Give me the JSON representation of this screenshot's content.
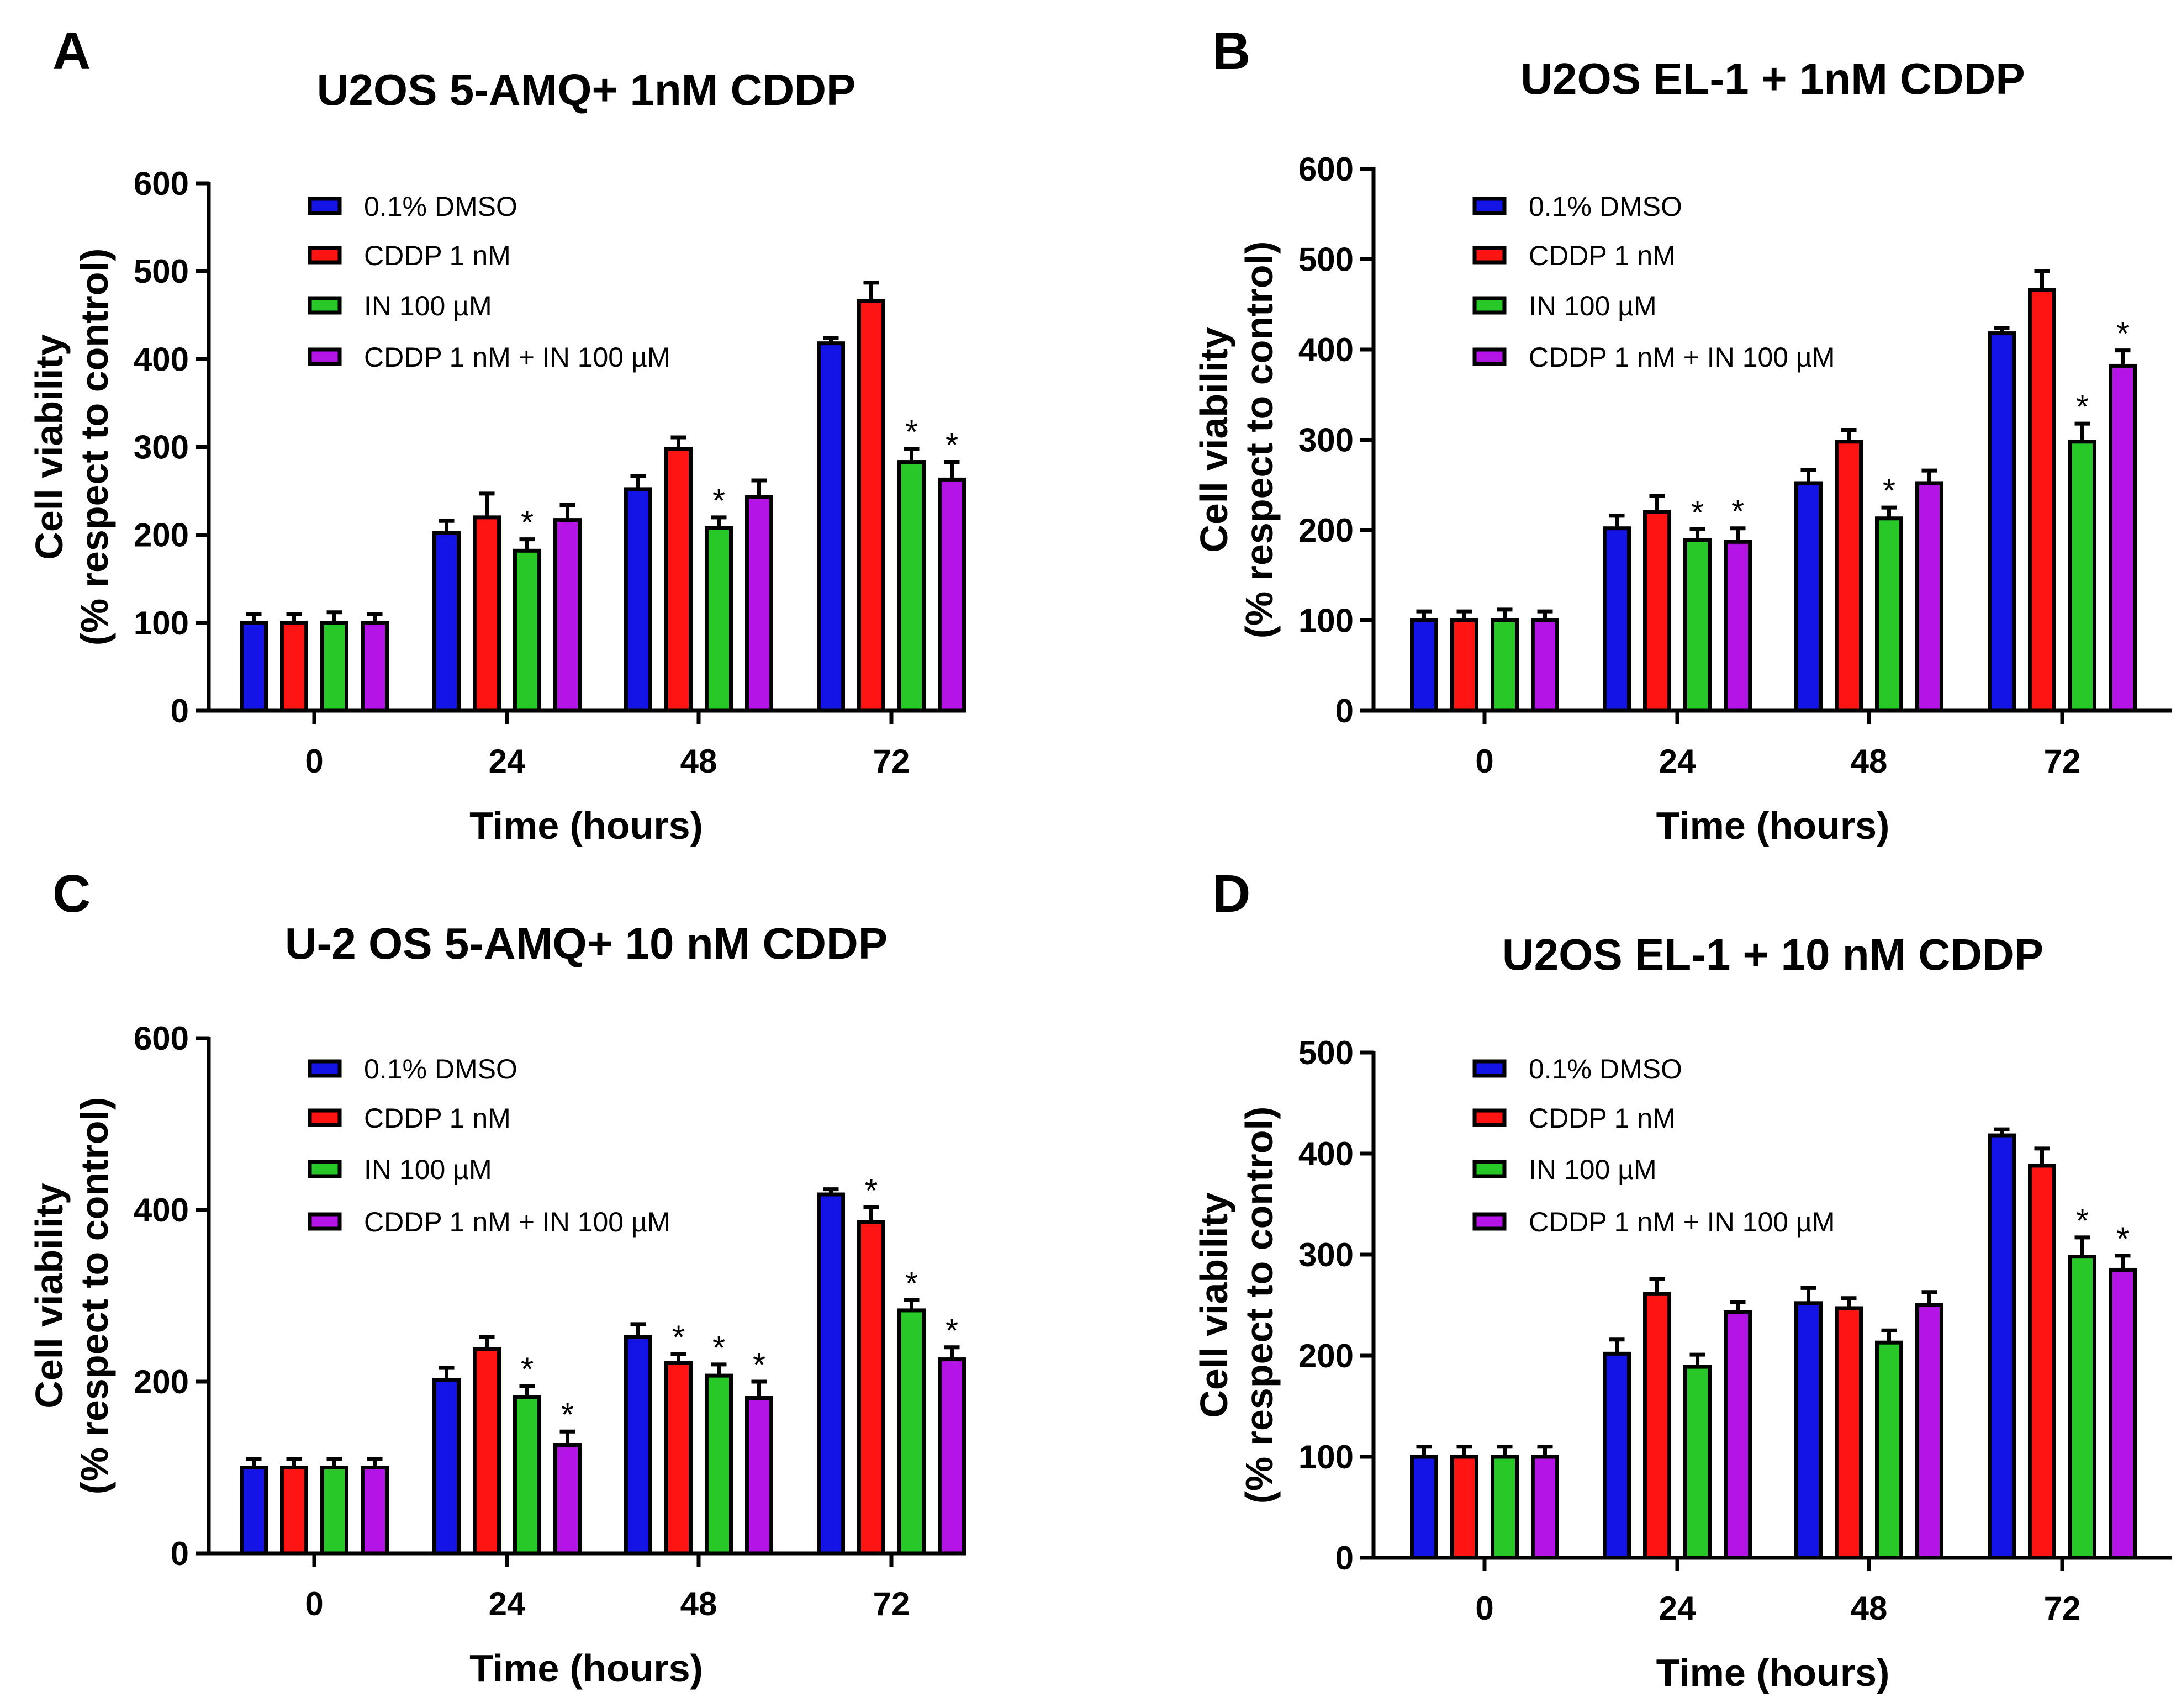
{
  "series_names": [
    "0.1%  DMSO",
    "CDDP 1 nM",
    "IN 100 µM",
    "CDDP 1 nM + IN 100 µM"
  ],
  "series_colors": [
    "#1414e6",
    "#ff1414",
    "#28c828",
    "#b414e6"
  ],
  "chart_data": [
    {
      "type": "bar",
      "panel": "A",
      "title": "U2OS 5-AMQ+ 1nM CDDP",
      "xlabel": "Time (hours)",
      "ylabel_line1": "Cell viability",
      "ylabel_line2": "(% respect to control)",
      "ylim": [
        0,
        600
      ],
      "yticks": [
        0,
        100,
        200,
        300,
        400,
        500,
        600
      ],
      "categories": [
        "0",
        "24",
        "48",
        "72"
      ],
      "series": [
        {
          "name": "0.1%  DMSO",
          "values": [
            100,
            202,
            252,
            418
          ],
          "errors": [
            10,
            14,
            15,
            6
          ]
        },
        {
          "name": "CDDP 1 nM",
          "values": [
            100,
            220,
            298,
            466
          ],
          "errors": [
            10,
            27,
            13,
            21
          ]
        },
        {
          "name": "IN 100 µM",
          "values": [
            100,
            182,
            208,
            283
          ],
          "errors": [
            12,
            13,
            12,
            15
          ]
        },
        {
          "name": "CDDP 1 nM + IN 100 µM",
          "values": [
            100,
            217,
            243,
            263
          ],
          "errors": [
            10,
            17,
            19,
            20
          ]
        }
      ],
      "significance": [
        {
          "series": 2,
          "category": 1,
          "label": "*"
        },
        {
          "series": 2,
          "category": 2,
          "label": "*"
        },
        {
          "series": 2,
          "category": 3,
          "label": "*"
        },
        {
          "series": 3,
          "category": 3,
          "label": "*"
        }
      ]
    },
    {
      "type": "bar",
      "panel": "B",
      "title": "U2OS EL-1 + 1nM CDDP",
      "xlabel": "Time (hours)",
      "ylabel_line1": "Cell viability",
      "ylabel_line2": "(% respect to control)",
      "ylim": [
        0,
        600
      ],
      "yticks": [
        0,
        100,
        200,
        300,
        400,
        500,
        600
      ],
      "categories": [
        "0",
        "24",
        "48",
        "72"
      ],
      "series": [
        {
          "name": "0.1%  DMSO",
          "values": [
            100,
            202,
            252,
            418
          ],
          "errors": [
            10,
            14,
            15,
            6
          ]
        },
        {
          "name": "CDDP 1 nM",
          "values": [
            100,
            220,
            298,
            466
          ],
          "errors": [
            10,
            18,
            13,
            21
          ]
        },
        {
          "name": "IN 100 µM",
          "values": [
            100,
            189,
            213,
            298
          ],
          "errors": [
            12,
            12,
            12,
            20
          ]
        },
        {
          "name": "CDDP 1 nM + IN 100 µM",
          "values": [
            100,
            187,
            252,
            382
          ],
          "errors": [
            10,
            15,
            14,
            17
          ]
        }
      ],
      "significance": [
        {
          "series": 2,
          "category": 1,
          "label": "*"
        },
        {
          "series": 3,
          "category": 1,
          "label": "*"
        },
        {
          "series": 2,
          "category": 2,
          "label": "*"
        },
        {
          "series": 2,
          "category": 3,
          "label": "*"
        },
        {
          "series": 3,
          "category": 3,
          "label": "*"
        }
      ]
    },
    {
      "type": "bar",
      "panel": "C",
      "title": "U-2 OS 5-AMQ+ 10 nM CDDP",
      "xlabel": "Time (hours)",
      "ylabel_line1": "Cell viability",
      "ylabel_line2": "(% respect to control)",
      "ylim": [
        0,
        600
      ],
      "yticks": [
        0,
        200,
        400,
        600
      ],
      "categories": [
        "0",
        "24",
        "48",
        "72"
      ],
      "series": [
        {
          "name": "0.1%  DMSO",
          "values": [
            100,
            202,
            252,
            418
          ],
          "errors": [
            10,
            14,
            15,
            6
          ]
        },
        {
          "name": "CDDP 1 nM",
          "values": [
            100,
            238,
            222,
            386
          ],
          "errors": [
            10,
            14,
            10,
            17
          ]
        },
        {
          "name": "IN 100 µM",
          "values": [
            100,
            182,
            207,
            283
          ],
          "errors": [
            10,
            13,
            13,
            12
          ]
        },
        {
          "name": "CDDP 1 nM + IN 100 µM",
          "values": [
            100,
            126,
            181,
            226
          ],
          "errors": [
            10,
            16,
            19,
            14
          ]
        }
      ],
      "significance": [
        {
          "series": 2,
          "category": 1,
          "label": "*"
        },
        {
          "series": 3,
          "category": 1,
          "label": "*"
        },
        {
          "series": 1,
          "category": 2,
          "label": "*"
        },
        {
          "series": 2,
          "category": 2,
          "label": "*"
        },
        {
          "series": 3,
          "category": 2,
          "label": "*"
        },
        {
          "series": 1,
          "category": 3,
          "label": "*"
        },
        {
          "series": 2,
          "category": 3,
          "label": "*"
        },
        {
          "series": 3,
          "category": 3,
          "label": "*"
        }
      ]
    },
    {
      "type": "bar",
      "panel": "D",
      "title": "U2OS EL-1 + 10 nM CDDP",
      "xlabel": "Time (hours)",
      "ylabel_line1": "Cell viability",
      "ylabel_line2": "(% respect to control)",
      "ylim": [
        0,
        500
      ],
      "yticks": [
        0,
        100,
        200,
        300,
        400,
        500
      ],
      "categories": [
        "0",
        "24",
        "48",
        "72"
      ],
      "series": [
        {
          "name": "0.1%  DMSO",
          "values": [
            100,
            202,
            252,
            418
          ],
          "errors": [
            10,
            14,
            15,
            6
          ]
        },
        {
          "name": "CDDP 1 nM",
          "values": [
            100,
            261,
            247,
            388
          ],
          "errors": [
            10,
            15,
            10,
            17
          ]
        },
        {
          "name": "IN 100 µM",
          "values": [
            100,
            189,
            213,
            298
          ],
          "errors": [
            10,
            12,
            12,
            19
          ]
        },
        {
          "name": "CDDP 1 nM + IN 100 µM",
          "values": [
            100,
            243,
            250,
            285
          ],
          "errors": [
            10,
            10,
            13,
            14
          ]
        }
      ],
      "significance": [
        {
          "series": 2,
          "category": 3,
          "label": "*"
        },
        {
          "series": 3,
          "category": 3,
          "label": "*"
        }
      ]
    }
  ]
}
